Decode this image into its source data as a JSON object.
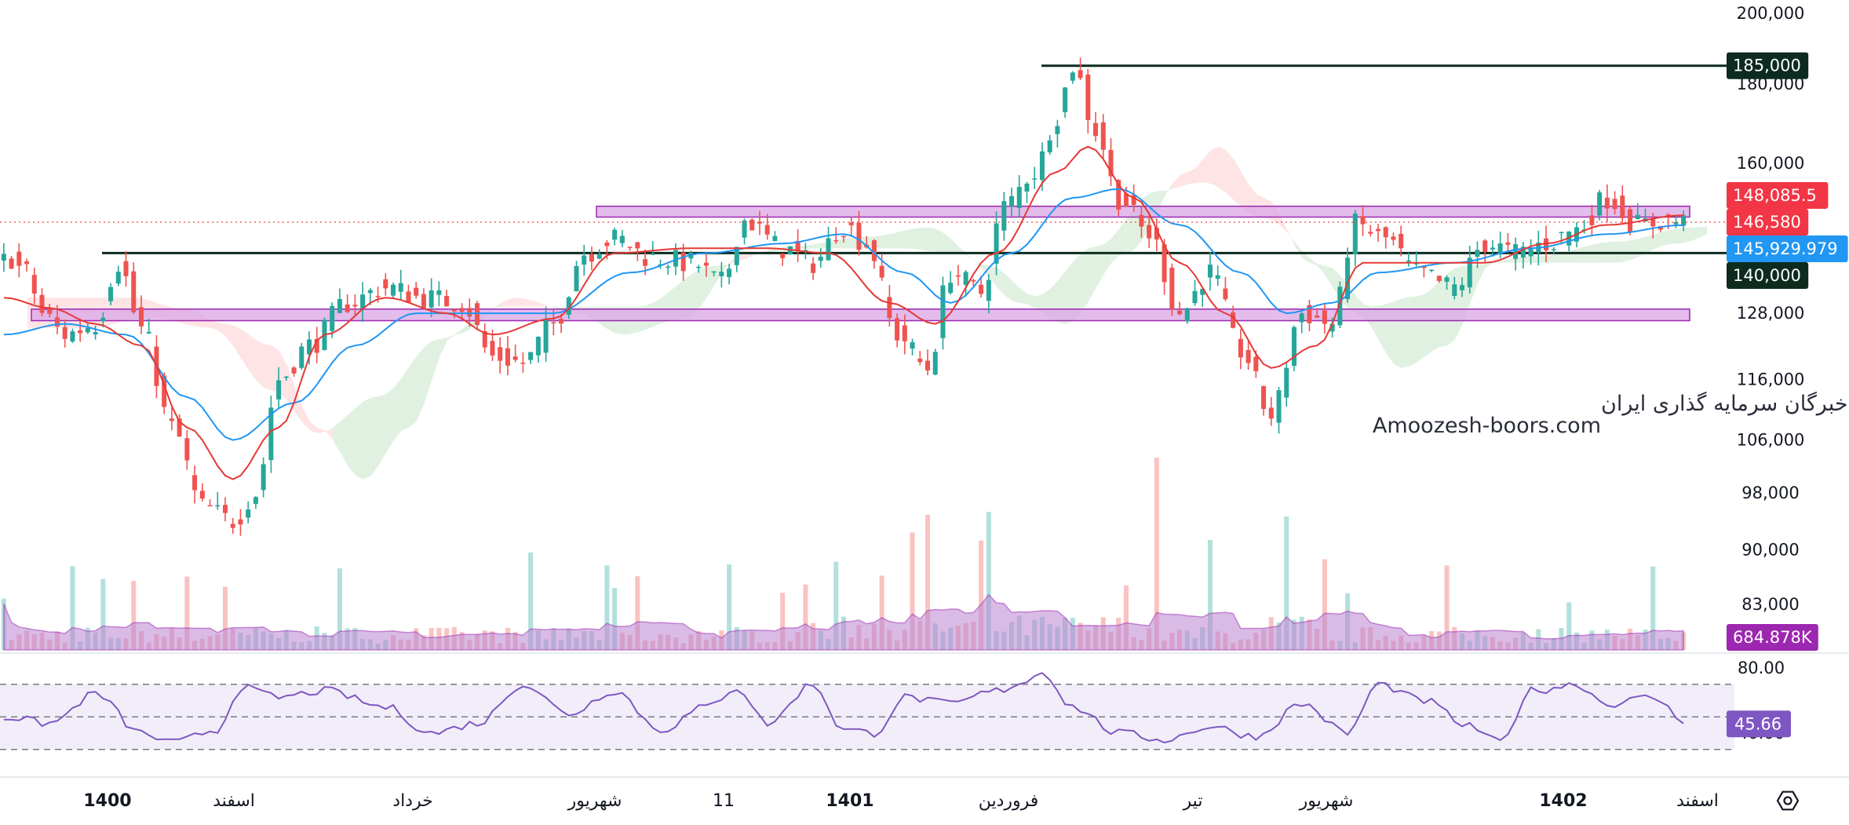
{
  "colors": {
    "up": "#26a69a",
    "down": "#ef5350",
    "ema_fast": "#e53935",
    "ema_slow": "#2196f3",
    "level": "#0d2b1f",
    "zone_fill": "#d9a6e6",
    "zone_stroke": "#9c27b0",
    "volume_area": "#b983d1",
    "rsi_line": "#7e57c2",
    "rsi_band": "#ede7f6",
    "cloud_green": "#c8e6c9",
    "cloud_red": "#ffcdd2"
  },
  "watermark": {
    "line1": "انجمن خبرگان سرمایه گذاری ایران",
    "line2": "Amoozesh-boors.com"
  },
  "settings_icon": "gear-hexagon-icon",
  "chart_data": {
    "type": "candlestick",
    "price_axis": {
      "ticks": [
        "200,000",
        "180,000",
        "160,000",
        "128,000",
        "116,000",
        "106,000",
        "98,000",
        "90,000",
        "83,000"
      ],
      "tick_values": [
        200000,
        180000,
        160000,
        128000,
        116000,
        106000,
        98000,
        90000,
        83000
      ],
      "scale": "log"
    },
    "rsi_axis": {
      "ticks": [
        "80.00",
        "40.00"
      ],
      "tick_values": [
        80,
        40
      ],
      "bands": [
        70,
        50,
        30
      ],
      "current": "45.66"
    },
    "time_axis": [
      {
        "label": "1400",
        "bold": true
      },
      {
        "label": "اسفند",
        "bold": false
      },
      {
        "label": "خرداد",
        "bold": false
      },
      {
        "label": "شهریور",
        "bold": false
      },
      {
        "label": "11",
        "bold": false
      },
      {
        "label": "1401",
        "bold": true
      },
      {
        "label": "فروردین",
        "bold": false
      },
      {
        "label": "تیر",
        "bold": false
      },
      {
        "label": "شهریور",
        "bold": false
      },
      {
        "label": "1402",
        "bold": true
      },
      {
        "label": "اسفند",
        "bold": false
      }
    ],
    "price_tags": [
      {
        "label": "185,000",
        "value": 185000,
        "kind": "level"
      },
      {
        "label": "148,085.5",
        "value": 148085.5,
        "kind": "ema_fast"
      },
      {
        "label": "146,580",
        "value": 146580,
        "kind": "last"
      },
      {
        "label": "145,929.979",
        "value": 145929.979,
        "kind": "ema_slow"
      },
      {
        "label": "140,000",
        "value": 140000,
        "kind": "level"
      },
      {
        "label": "684.878K",
        "value": 684878,
        "kind": "volume"
      }
    ],
    "horizontal_levels": [
      185000,
      140000
    ],
    "zones": [
      {
        "low": 147700,
        "high": 150100
      },
      {
        "low": 126600,
        "high": 128800
      }
    ],
    "last_price": 146580,
    "price_anchors": [
      [
        0,
        140000
      ],
      [
        3,
        136000
      ],
      [
        5,
        128000
      ],
      [
        8,
        124000
      ],
      [
        12,
        126000
      ],
      [
        15,
        138000
      ],
      [
        18,
        125000
      ],
      [
        22,
        108000
      ],
      [
        26,
        96000
      ],
      [
        30,
        94000
      ],
      [
        33,
        98000
      ],
      [
        36,
        116000
      ],
      [
        40,
        122000
      ],
      [
        45,
        130000
      ],
      [
        50,
        133000
      ],
      [
        55,
        131000
      ],
      [
        60,
        130000
      ],
      [
        64,
        120000
      ],
      [
        68,
        119000
      ],
      [
        72,
        126000
      ],
      [
        76,
        140000
      ],
      [
        80,
        143000
      ],
      [
        85,
        139000
      ],
      [
        90,
        138000
      ],
      [
        94,
        134000
      ],
      [
        97,
        147000
      ],
      [
        102,
        141000
      ],
      [
        106,
        138000
      ],
      [
        110,
        146000
      ],
      [
        113,
        142000
      ],
      [
        117,
        124000
      ],
      [
        121,
        118000
      ],
      [
        124,
        136000
      ],
      [
        128,
        132000
      ],
      [
        131,
        150000
      ],
      [
        135,
        158000
      ],
      [
        138,
        172000
      ],
      [
        140,
        185000
      ],
      [
        143,
        168000
      ],
      [
        146,
        152000
      ],
      [
        150,
        144000
      ],
      [
        154,
        128000
      ],
      [
        158,
        136000
      ],
      [
        162,
        121000
      ],
      [
        166,
        110000
      ],
      [
        170,
        128000
      ],
      [
        174,
        126000
      ],
      [
        177,
        146000
      ],
      [
        181,
        143000
      ],
      [
        185,
        136000
      ],
      [
        190,
        133000
      ],
      [
        194,
        142000
      ],
      [
        198,
        140000
      ],
      [
        202,
        142000
      ],
      [
        206,
        145000
      ],
      [
        210,
        152000
      ],
      [
        214,
        146000
      ],
      [
        218,
        147000
      ],
      [
        220,
        146580
      ]
    ],
    "ema_fast_anchors": [
      [
        0,
        131000
      ],
      [
        6,
        129000
      ],
      [
        12,
        126000
      ],
      [
        18,
        122000
      ],
      [
        24,
        108000
      ],
      [
        30,
        100000
      ],
      [
        36,
        108000
      ],
      [
        42,
        124000
      ],
      [
        50,
        131000
      ],
      [
        58,
        128000
      ],
      [
        64,
        124000
      ],
      [
        72,
        127000
      ],
      [
        80,
        140000
      ],
      [
        90,
        141000
      ],
      [
        100,
        141000
      ],
      [
        108,
        140000
      ],
      [
        116,
        130000
      ],
      [
        122,
        126000
      ],
      [
        130,
        140000
      ],
      [
        138,
        158000
      ],
      [
        142,
        164000
      ],
      [
        148,
        152000
      ],
      [
        154,
        138000
      ],
      [
        160,
        128000
      ],
      [
        166,
        118000
      ],
      [
        172,
        122000
      ],
      [
        178,
        138000
      ],
      [
        186,
        138000
      ],
      [
        194,
        138000
      ],
      [
        202,
        142000
      ],
      [
        210,
        146000
      ],
      [
        220,
        148085
      ]
    ],
    "ema_slow_anchors": [
      [
        0,
        124000
      ],
      [
        8,
        126000
      ],
      [
        16,
        124000
      ],
      [
        24,
        113000
      ],
      [
        30,
        106000
      ],
      [
        38,
        112000
      ],
      [
        46,
        122000
      ],
      [
        54,
        128000
      ],
      [
        62,
        128000
      ],
      [
        72,
        128000
      ],
      [
        82,
        136000
      ],
      [
        92,
        140000
      ],
      [
        102,
        142000
      ],
      [
        110,
        144000
      ],
      [
        118,
        136000
      ],
      [
        124,
        130000
      ],
      [
        132,
        140000
      ],
      [
        140,
        152000
      ],
      [
        146,
        154000
      ],
      [
        154,
        146000
      ],
      [
        162,
        136000
      ],
      [
        168,
        128000
      ],
      [
        174,
        130000
      ],
      [
        180,
        136000
      ],
      [
        190,
        138000
      ],
      [
        200,
        141000
      ],
      [
        210,
        144000
      ],
      [
        220,
        145930
      ]
    ],
    "rsi_anchors": [
      [
        0,
        50
      ],
      [
        6,
        46
      ],
      [
        12,
        64
      ],
      [
        18,
        40
      ],
      [
        22,
        34
      ],
      [
        28,
        42
      ],
      [
        31,
        68
      ],
      [
        36,
        62
      ],
      [
        42,
        66
      ],
      [
        50,
        56
      ],
      [
        56,
        40
      ],
      [
        62,
        46
      ],
      [
        68,
        70
      ],
      [
        74,
        52
      ],
      [
        80,
        66
      ],
      [
        86,
        42
      ],
      [
        92,
        56
      ],
      [
        96,
        68
      ],
      [
        100,
        46
      ],
      [
        106,
        70
      ],
      [
        110,
        42
      ],
      [
        114,
        40
      ],
      [
        118,
        62
      ],
      [
        124,
        58
      ],
      [
        130,
        66
      ],
      [
        134,
        72
      ],
      [
        136,
        78
      ],
      [
        140,
        56
      ],
      [
        146,
        40
      ],
      [
        152,
        36
      ],
      [
        158,
        44
      ],
      [
        164,
        38
      ],
      [
        170,
        58
      ],
      [
        176,
        40
      ],
      [
        180,
        70
      ],
      [
        186,
        60
      ],
      [
        192,
        44
      ],
      [
        196,
        34
      ],
      [
        200,
        66
      ],
      [
        206,
        70
      ],
      [
        210,
        58
      ],
      [
        216,
        62
      ],
      [
        220,
        48
      ]
    ]
  }
}
